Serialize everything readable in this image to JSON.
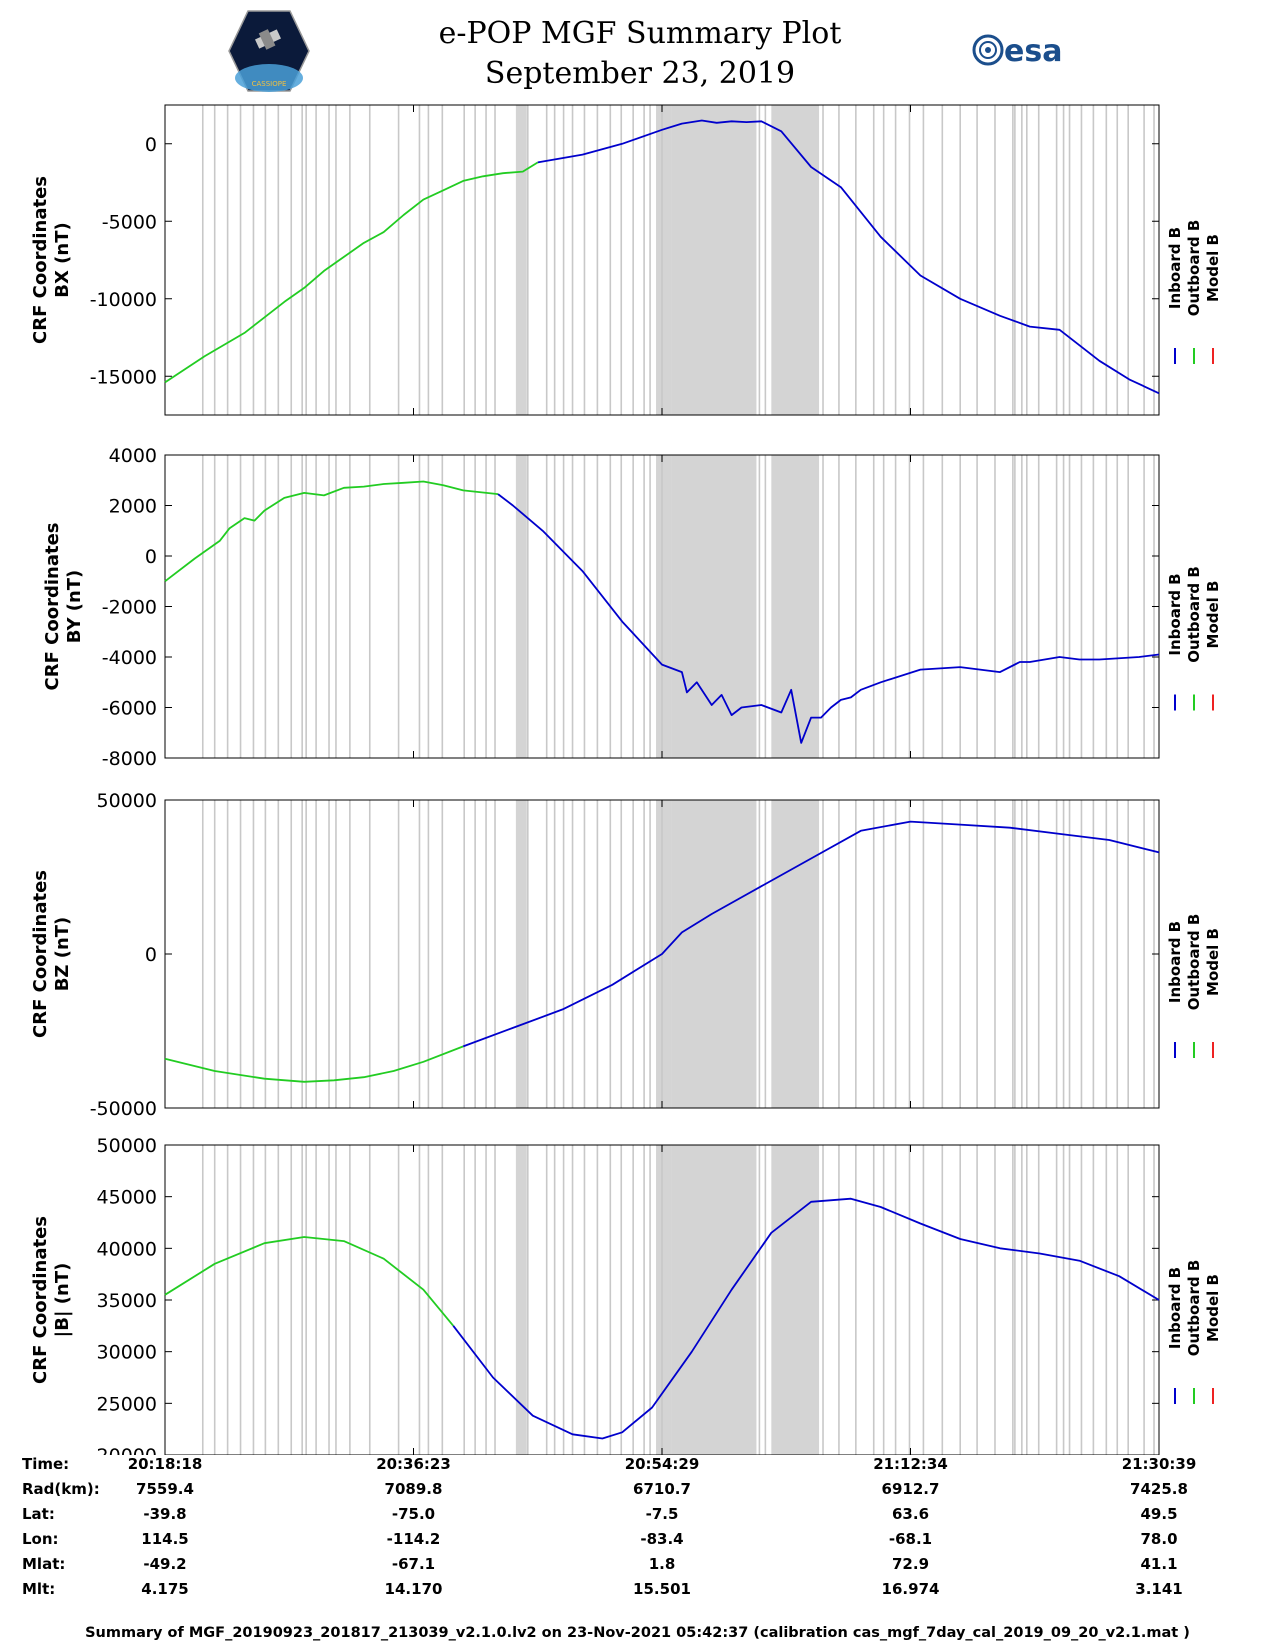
{
  "header": {
    "title": "e-POP MGF Summary Plot",
    "date": "September 23, 2019",
    "left_logo_text": "CASSIOPE",
    "right_logo_text": "esa"
  },
  "colors": {
    "inboard": "#0000cc",
    "outboard": "#22cc22",
    "model": "#ee2222",
    "shade": "#d4d4d4",
    "gridline": "#c8c8c8"
  },
  "chart_data": [
    {
      "type": "line",
      "id": "bx",
      "ylabel": [
        "CRF Coordinates",
        "BX (nT)"
      ],
      "ylim": [
        -17500,
        2500
      ],
      "yticks": [
        0,
        -5000,
        -10000,
        -15000
      ],
      "ytick_labels": [
        "0",
        "-5000",
        "-10000",
        "-15000"
      ],
      "legend": [
        "Inboard B",
        "Outboard B",
        "Model B"
      ],
      "xlim": [
        0,
        1
      ],
      "switch_x": 0.375,
      "series": [
        {
          "name": "Outboard B",
          "x": [
            0,
            0.04,
            0.08,
            0.1,
            0.12,
            0.14,
            0.16,
            0.18,
            0.2,
            0.22,
            0.24,
            0.26,
            0.28,
            0.3,
            0.32,
            0.34,
            0.36,
            0.375
          ],
          "values": [
            -15400,
            -13700,
            -12200,
            -11200,
            -10200,
            -9300,
            -8200,
            -7300,
            -6400,
            -5700,
            -4600,
            -3600,
            -3000,
            -2400,
            -2100,
            -1900,
            -1800,
            -1200
          ]
        },
        {
          "name": "Inboard B",
          "x": [
            0.375,
            0.42,
            0.46,
            0.5,
            0.52,
            0.54,
            0.555,
            0.57,
            0.585,
            0.6,
            0.62,
            0.65,
            0.68,
            0.72,
            0.76,
            0.8,
            0.84,
            0.87,
            0.9,
            0.94,
            0.97,
            1.0
          ],
          "values": [
            -1200,
            -700,
            0,
            900,
            1300,
            1500,
            1350,
            1450,
            1400,
            1450,
            800,
            -1500,
            -2800,
            -6000,
            -8500,
            -10000,
            -11100,
            -11800,
            -12000,
            -14000,
            -15200,
            -16100
          ]
        }
      ]
    },
    {
      "type": "line",
      "id": "by",
      "ylabel": [
        "CRF Coordinates",
        "BY (nT)"
      ],
      "ylim": [
        -8000,
        4000
      ],
      "yticks": [
        4000,
        2000,
        0,
        -2000,
        -4000,
        -6000,
        -8000
      ],
      "ytick_labels": [
        "4000",
        "2000",
        "0",
        "-2000",
        "-4000",
        "-6000",
        "-8000"
      ],
      "legend": [
        "Inboard B",
        "Outboard B",
        "Model B"
      ],
      "xlim": [
        0,
        1
      ],
      "switch_x": 0.335,
      "series": [
        {
          "name": "Outboard B",
          "x": [
            0,
            0.03,
            0.055,
            0.065,
            0.08,
            0.09,
            0.1,
            0.12,
            0.14,
            0.16,
            0.18,
            0.2,
            0.22,
            0.24,
            0.26,
            0.28,
            0.3,
            0.335
          ],
          "values": [
            -1000,
            -100,
            600,
            1100,
            1500,
            1400,
            1800,
            2300,
            2500,
            2400,
            2700,
            2750,
            2850,
            2900,
            2950,
            2800,
            2600,
            2450
          ]
        },
        {
          "name": "Inboard B",
          "x": [
            0.335,
            0.35,
            0.38,
            0.42,
            0.46,
            0.5,
            0.52,
            0.525,
            0.535,
            0.55,
            0.56,
            0.57,
            0.58,
            0.6,
            0.62,
            0.63,
            0.64,
            0.65,
            0.66,
            0.67,
            0.68,
            0.69,
            0.7,
            0.72,
            0.76,
            0.8,
            0.84,
            0.86,
            0.87,
            0.9,
            0.92,
            0.94,
            0.98,
            1.0
          ],
          "values": [
            2450,
            2000,
            1000,
            -600,
            -2600,
            -4300,
            -4600,
            -5400,
            -5000,
            -5900,
            -5500,
            -6300,
            -6000,
            -5900,
            -6200,
            -5300,
            -7400,
            -6400,
            -6400,
            -6000,
            -5700,
            -5600,
            -5300,
            -5000,
            -4500,
            -4400,
            -4600,
            -4200,
            -4200,
            -4000,
            -4100,
            -4100,
            -4000,
            -3900
          ]
        }
      ]
    },
    {
      "type": "line",
      "id": "bz",
      "ylabel": [
        "CRF Coordinates",
        "BZ (nT)"
      ],
      "ylim": [
        -50000,
        50000
      ],
      "yticks": [
        50000,
        0,
        -50000
      ],
      "ytick_labels": [
        "50000",
        "0",
        "-50000"
      ],
      "legend": [
        "Inboard B",
        "Outboard B",
        "Model B"
      ],
      "xlim": [
        0,
        1
      ],
      "switch_x": 0.3,
      "series": [
        {
          "name": "Outboard B",
          "x": [
            0,
            0.05,
            0.1,
            0.14,
            0.17,
            0.2,
            0.23,
            0.26,
            0.3
          ],
          "values": [
            -34000,
            -38000,
            -40500,
            -41500,
            -41000,
            -40000,
            -38000,
            -35000,
            -30000
          ]
        },
        {
          "name": "Inboard B",
          "x": [
            0.3,
            0.35,
            0.4,
            0.45,
            0.5,
            0.52,
            0.55,
            0.6,
            0.65,
            0.7,
            0.75,
            0.8,
            0.85,
            0.9,
            0.95,
            1.0
          ],
          "values": [
            -30000,
            -24000,
            -18000,
            -10000,
            0,
            7000,
            13000,
            22000,
            31000,
            40000,
            43000,
            42000,
            41000,
            39000,
            37000,
            33000
          ]
        }
      ]
    },
    {
      "type": "line",
      "id": "bmag",
      "ylabel": [
        "CRF Coordinates",
        "|B| (nT)"
      ],
      "ylim": [
        20000,
        50000
      ],
      "yticks": [
        50000,
        45000,
        40000,
        35000,
        30000,
        25000,
        20000
      ],
      "ytick_labels": [
        "50000",
        "45000",
        "40000",
        "35000",
        "30000",
        "25000",
        "20000"
      ],
      "legend": [
        "Inboard B",
        "Outboard B",
        "Model B"
      ],
      "xlim": [
        0,
        1
      ],
      "switch_x": 0.29,
      "series": [
        {
          "name": "Outboard B",
          "x": [
            0,
            0.05,
            0.1,
            0.14,
            0.18,
            0.22,
            0.26,
            0.29
          ],
          "values": [
            35500,
            38500,
            40500,
            41100,
            40700,
            39000,
            36000,
            32500
          ]
        },
        {
          "name": "Inboard B",
          "x": [
            0.29,
            0.33,
            0.37,
            0.41,
            0.44,
            0.46,
            0.49,
            0.53,
            0.57,
            0.61,
            0.65,
            0.69,
            0.72,
            0.76,
            0.8,
            0.84,
            0.88,
            0.92,
            0.96,
            1.0
          ],
          "values": [
            32500,
            27500,
            23800,
            22000,
            21600,
            22200,
            24600,
            30000,
            36000,
            41500,
            44500,
            44800,
            44000,
            42400,
            40900,
            40000,
            39500,
            38800,
            37300,
            35000
          ]
        }
      ]
    }
  ],
  "shading": {
    "bands": [
      [
        0.353,
        0.364
      ],
      [
        0.494,
        0.51
      ],
      [
        0.51,
        0.595
      ],
      [
        0.61,
        0.658
      ]
    ],
    "lines": [
      0.038,
      0.05,
      0.063,
      0.076,
      0.089,
      0.101,
      0.114,
      0.127,
      0.138,
      0.142,
      0.152,
      0.165,
      0.172,
      0.186,
      0.206,
      0.235,
      0.256,
      0.265,
      0.279,
      0.301,
      0.312,
      0.323,
      0.332,
      0.365,
      0.384,
      0.392,
      0.401,
      0.41,
      0.422,
      0.435,
      0.448,
      0.459,
      0.471,
      0.482,
      0.488,
      0.5,
      0.598,
      0.604,
      0.662,
      0.678,
      0.695,
      0.713,
      0.723,
      0.735,
      0.749,
      0.763,
      0.782,
      0.8,
      0.817,
      0.835,
      0.853,
      0.855,
      0.862,
      0.867,
      0.879,
      0.897,
      0.904,
      0.91,
      0.922,
      0.934,
      0.947,
      0.958,
      0.969,
      0.985,
      0.995
    ]
  },
  "orbit_table": {
    "labels": [
      "Time:",
      "Rad(km):",
      "Lat:",
      "Lon:",
      "Mlat:",
      "Mlt:"
    ],
    "columns": [
      {
        "x": 0.0,
        "values": [
          "20:18:18",
          "7559.4",
          "-39.8",
          "114.5",
          "-49.2",
          "4.175"
        ]
      },
      {
        "x": 0.25,
        "values": [
          "20:36:23",
          "7089.8",
          "-75.0",
          "-114.2",
          "-67.1",
          "14.170"
        ]
      },
      {
        "x": 0.5,
        "values": [
          "20:54:29",
          "6710.7",
          "-7.5",
          "-83.4",
          "1.8",
          "15.501"
        ]
      },
      {
        "x": 0.75,
        "values": [
          "21:12:34",
          "6912.7",
          "63.6",
          "-68.1",
          "72.9",
          "16.974"
        ]
      },
      {
        "x": 1.0,
        "values": [
          "21:30:39",
          "7425.8",
          "49.5",
          "78.0",
          "41.1",
          "3.141"
        ]
      }
    ]
  },
  "footer": "Summary of MGF_20190923_201817_213039_v2.1.0.lv2 on 23-Nov-2021 05:42:37 (calibration cas_mgf_7day_cal_2019_09_20_v2.1.mat )"
}
